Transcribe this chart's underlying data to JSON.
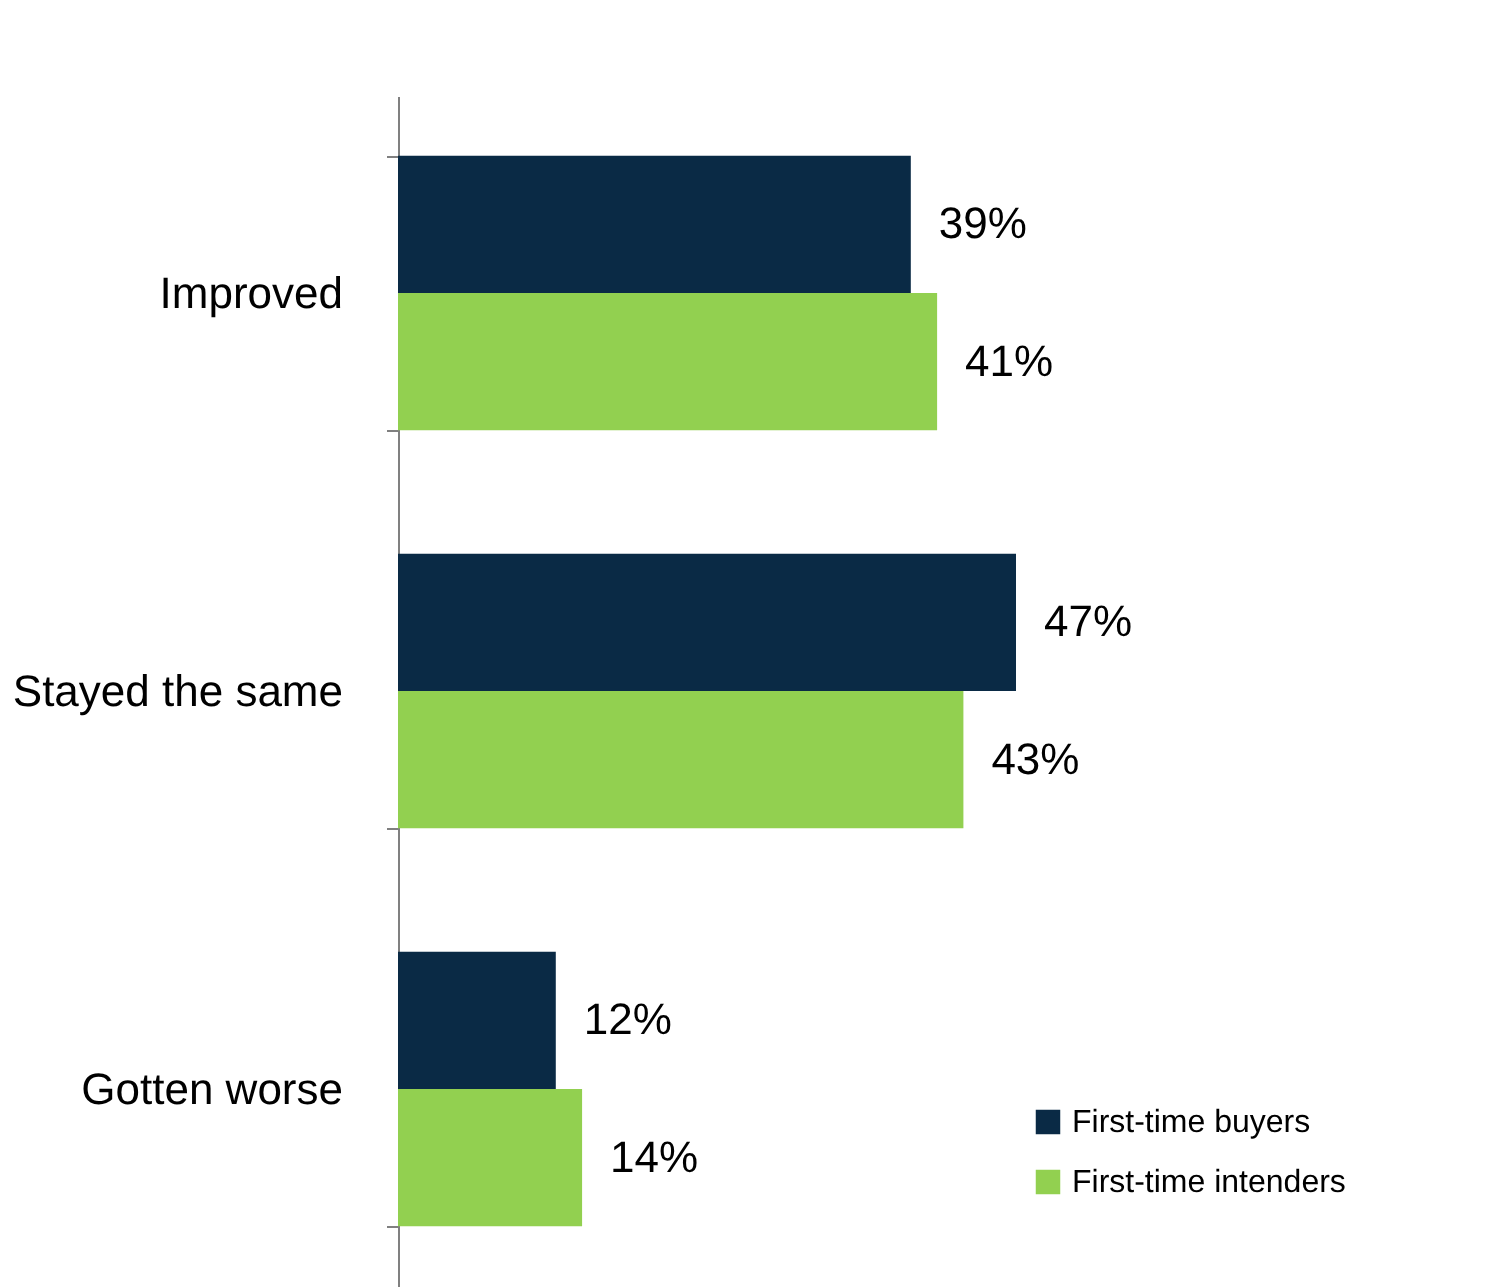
{
  "chart_data": {
    "type": "bar",
    "orientation": "horizontal",
    "categories": [
      "Improved",
      "Stayed the same",
      "Gotten worse"
    ],
    "series": [
      {
        "name": "First-time buyers",
        "color": "#0a2a45",
        "values": [
          39,
          47,
          12
        ],
        "value_labels": [
          "39%",
          "47%",
          "12%"
        ]
      },
      {
        "name": "First-time intenders",
        "color": "#92d050",
        "values": [
          41,
          43,
          14
        ],
        "value_labels": [
          "41%",
          "43%",
          "14%"
        ]
      }
    ],
    "legend": "bottom right",
    "grid": false
  }
}
